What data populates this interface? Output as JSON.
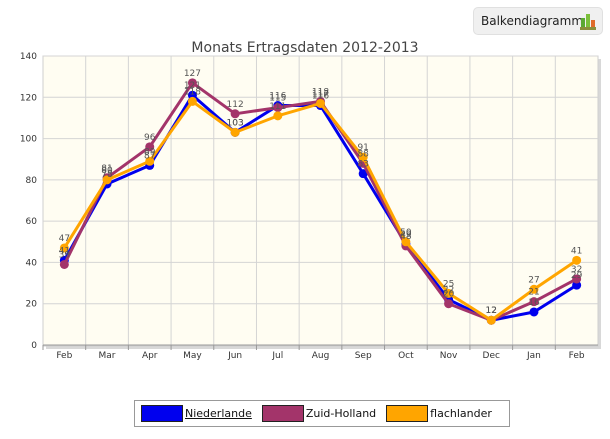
{
  "toggle_button": {
    "label": "Balkendiagramm",
    "icon": "bar-chart-icon"
  },
  "chart_data": {
    "type": "line",
    "title": "Monats Ertragsdaten 2012-2013",
    "xlabel": "",
    "ylabel": "",
    "categories": [
      "Feb",
      "Mar",
      "Apr",
      "May",
      "Jun",
      "Jul",
      "Aug",
      "Sep",
      "Oct",
      "Nov",
      "Dec",
      "Jan",
      "Feb"
    ],
    "ylim": [
      0,
      140
    ],
    "yticks": [
      0,
      20,
      40,
      60,
      80,
      100,
      120,
      140
    ],
    "grid": true,
    "legend_position": "bottom",
    "series": [
      {
        "name": "Niederlande",
        "color": "#0000ee",
        "values": [
          41,
          78,
          87,
          121,
          103,
          116,
          116,
          83,
          49,
          22,
          12,
          16,
          29
        ]
      },
      {
        "name": "Zuid-Holland",
        "color": "#a3346a",
        "values": [
          39,
          81,
          96,
          127,
          112,
          115,
          118,
          88,
          48,
          20,
          12,
          21,
          32
        ]
      },
      {
        "name": "flachlander",
        "color": "#ffa500",
        "values": [
          47,
          80,
          89,
          118,
          103,
          111,
          117,
          91,
          50,
          25,
          12,
          27,
          41
        ]
      }
    ]
  }
}
